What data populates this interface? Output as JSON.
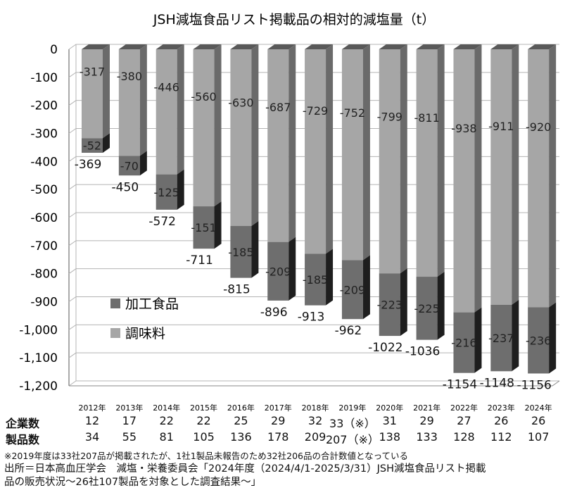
{
  "chart_data": {
    "type": "bar",
    "stacked": true,
    "title": "JSH減塩食品リスト掲載品の相対的減塩量（t）",
    "categories": [
      "2012年",
      "2013年",
      "2014年",
      "2015年",
      "2016年",
      "2017年",
      "2018年",
      "2019年",
      "2020年",
      "2021年",
      "2022年",
      "2023年",
      "2024年"
    ],
    "series": [
      {
        "name": "調味料",
        "values": [
          -317,
          -380,
          -446,
          -560,
          -630,
          -687,
          -729,
          -752,
          -799,
          -811,
          -938,
          -911,
          -920
        ],
        "labels": [
          "-317",
          "-380",
          "-446",
          "-560",
          "-630",
          "-687",
          "-729",
          "-752",
          "-799",
          "-811",
          "-938",
          "-911",
          "-920"
        ],
        "color": "#a6a6a6"
      },
      {
        "name": "加工食品",
        "values": [
          -52,
          -70,
          -125,
          -151,
          -185,
          -209,
          -185,
          -209,
          -223,
          -225,
          -216,
          -237,
          -236
        ],
        "labels": [
          "-52",
          "-70",
          "-125",
          "-151",
          "-185",
          "-209",
          "-185",
          "-209",
          "-223",
          "-225",
          "-216",
          "-237",
          "-236"
        ],
        "color": "#6e6e6e"
      }
    ],
    "totals": [
      -369,
      -450,
      -572,
      -711,
      -815,
      -896,
      -913,
      -962,
      -1022,
      -1036,
      -1154,
      -1148,
      -1156
    ],
    "total_labels": [
      "-369",
      "-450",
      "-572",
      "-711",
      "-815",
      "-896",
      "-913",
      "-962",
      "-1022",
      "-1036",
      "-1154",
      "-1148",
      "-1156"
    ],
    "yticks": [
      0,
      -100,
      -200,
      -300,
      -400,
      -500,
      -600,
      -700,
      -800,
      -900,
      -1000,
      -1100,
      -1200
    ],
    "ytick_labels": [
      "0",
      "-100",
      "-200",
      "-300",
      "-400",
      "-500",
      "-600",
      "-700",
      "-800",
      "-900",
      "-1,000",
      "-1,100",
      "-1,200"
    ],
    "ylim": [
      -1200,
      0
    ],
    "grid": true,
    "legend_position": "bottom-left"
  },
  "table": {
    "companies_label": "企業数",
    "companies": [
      "12",
      "17",
      "22",
      "22",
      "25",
      "29",
      "32",
      "33（※）",
      "31",
      "29",
      "27",
      "26",
      "26"
    ],
    "products_label": "製品数",
    "products": [
      "34",
      "55",
      "81",
      "105",
      "136",
      "178",
      "209",
      "207（※）",
      "138",
      "133",
      "128",
      "112",
      "107"
    ]
  },
  "note": "※2019年度は33社207品が掲載されたが、1社1製品未報告のため32社206品の合計数値となっている",
  "source_line1": "出所＝日本高血圧学会　減塩・栄養委員会「2024年度（2024/4/1-2025/3/31）JSH減塩食品リスト掲載",
  "source_line2": "品の販売状況～26社107製品を対象とした調査結果～」",
  "colors": {
    "seasoning": "#a6a6a6",
    "seasoning_side": "#6a6a6a",
    "processed": "#6e6e6e",
    "processed_side": "#1e1e1e",
    "top_face": "#595959",
    "grid": "#b4b4b4"
  }
}
